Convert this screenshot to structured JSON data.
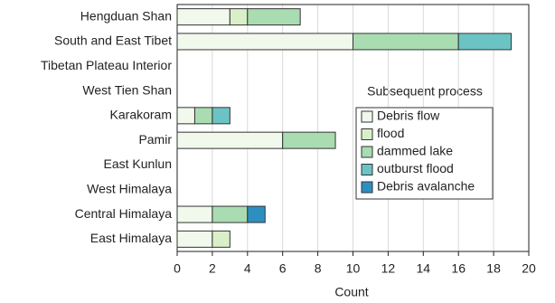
{
  "chart_data": {
    "type": "stacked-bar-horizontal",
    "x_label": "Count",
    "legend_title": "Subsequent process",
    "categories": [
      "Hengduan Shan",
      "South and East Tibet",
      "Tibetan Plateau Interior",
      "West Tien Shan",
      "Karakoram",
      "Pamir",
      "East Kunlun",
      "West Himalaya",
      "Central Himalaya",
      "East Himalaya"
    ],
    "series": [
      {
        "name": "Debris flow",
        "color": "#f1f8ec",
        "values": [
          3,
          10,
          0,
          0,
          1,
          6,
          0,
          0,
          2,
          2
        ]
      },
      {
        "name": "flood",
        "color": "#d9efc9",
        "values": [
          1,
          0,
          0,
          0,
          0,
          0,
          0,
          0,
          0,
          1
        ]
      },
      {
        "name": "dammed lake",
        "color": "#a9dcb1",
        "values": [
          3,
          6,
          0,
          0,
          1,
          3,
          0,
          0,
          2,
          0
        ]
      },
      {
        "name": "outburst flood",
        "color": "#6cc3c4",
        "values": [
          0,
          3,
          0,
          0,
          1,
          0,
          0,
          0,
          0,
          0
        ]
      },
      {
        "name": "Debris avalanche",
        "color": "#2d8fc1",
        "values": [
          0,
          0,
          0,
          0,
          0,
          0,
          0,
          0,
          1,
          0
        ]
      }
    ],
    "xlim": [
      0,
      20
    ],
    "xticks": [
      0,
      2,
      4,
      6,
      8,
      10,
      12,
      14,
      16,
      18,
      20
    ],
    "grid": true
  }
}
